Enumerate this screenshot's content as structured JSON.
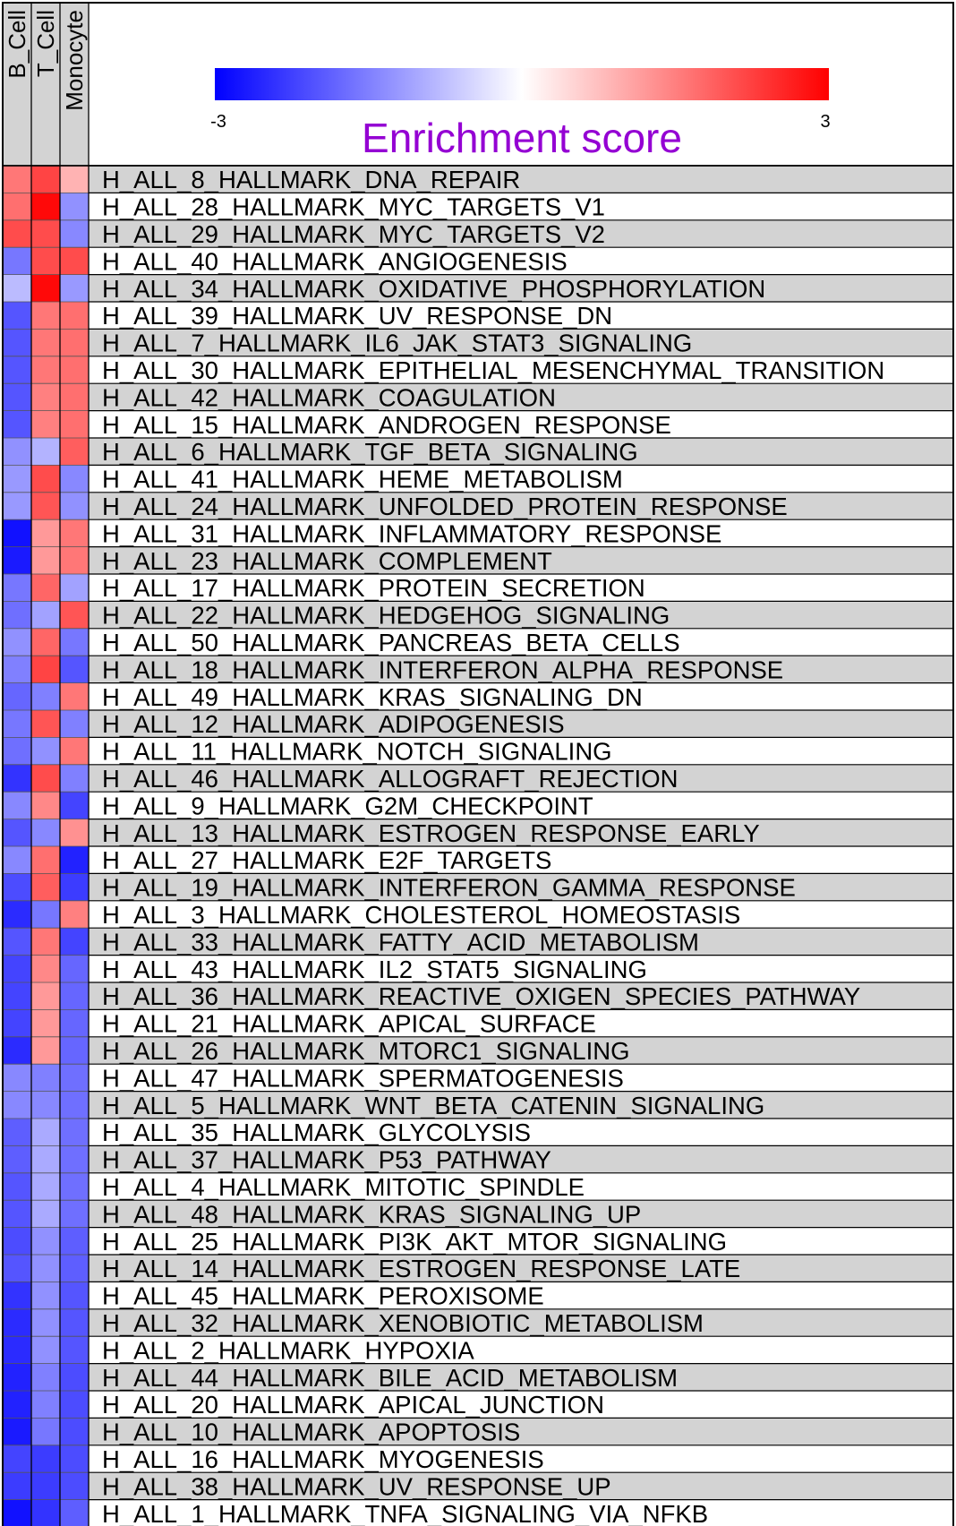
{
  "chart_data": {
    "type": "heatmap",
    "columns": [
      "B_Cell",
      "T_Cell",
      "Monocyte"
    ],
    "rows": [
      "H_ALL_8_HALLMARK_DNA_REPAIR",
      "H_ALL_28_HALLMARK_MYC_TARGETS_V1",
      "H_ALL_29_HALLMARK_MYC_TARGETS_V2",
      "H_ALL_40_HALLMARK_ANGIOGENESIS",
      "H_ALL_34_HALLMARK_OXIDATIVE_PHOSPHORYLATION",
      "H_ALL_39_HALLMARK_UV_RESPONSE_DN",
      "H_ALL_7_HALLMARK_IL6_JAK_STAT3_SIGNALING",
      "H_ALL_30_HALLMARK_EPITHELIAL_MESENCHYMAL_TRANSITION",
      "H_ALL_42_HALLMARK_COAGULATION",
      "H_ALL_15_HALLMARK_ANDROGEN_RESPONSE",
      "H_ALL_6_HALLMARK_TGF_BETA_SIGNALING",
      "H_ALL_41_HALLMARK_HEME_METABOLISM",
      "H_ALL_24_HALLMARK_UNFOLDED_PROTEIN_RESPONSE",
      "H_ALL_31_HALLMARK_INFLAMMATORY_RESPONSE",
      "H_ALL_23_HALLMARK_COMPLEMENT",
      "H_ALL_17_HALLMARK_PROTEIN_SECRETION",
      "H_ALL_22_HALLMARK_HEDGEHOG_SIGNALING",
      "H_ALL_50_HALLMARK_PANCREAS_BETA_CELLS",
      "H_ALL_18_HALLMARK_INTERFERON_ALPHA_RESPONSE",
      "H_ALL_49_HALLMARK_KRAS_SIGNALING_DN",
      "H_ALL_12_HALLMARK_ADIPOGENESIS",
      "H_ALL_11_HALLMARK_NOTCH_SIGNALING",
      "H_ALL_46_HALLMARK_ALLOGRAFT_REJECTION",
      "H_ALL_9_HALLMARK_G2M_CHECKPOINT",
      "H_ALL_13_HALLMARK_ESTROGEN_RESPONSE_EARLY",
      "H_ALL_27_HALLMARK_E2F_TARGETS",
      "H_ALL_19_HALLMARK_INTERFERON_GAMMA_RESPONSE",
      "H_ALL_3_HALLMARK_CHOLESTEROL_HOMEOSTASIS",
      "H_ALL_33_HALLMARK_FATTY_ACID_METABOLISM",
      "H_ALL_43_HALLMARK_IL2_STAT5_SIGNALING",
      "H_ALL_36_HALLMARK_REACTIVE_OXIGEN_SPECIES_PATHWAY",
      "H_ALL_21_HALLMARK_APICAL_SURFACE",
      "H_ALL_26_HALLMARK_MTORC1_SIGNALING",
      "H_ALL_47_HALLMARK_SPERMATOGENESIS",
      "H_ALL_5_HALLMARK_WNT_BETA_CATENIN_SIGNALING",
      "H_ALL_35_HALLMARK_GLYCOLYSIS",
      "H_ALL_37_HALLMARK_P53_PATHWAY",
      "H_ALL_4_HALLMARK_MITOTIC_SPINDLE",
      "H_ALL_48_HALLMARK_KRAS_SIGNALING_UP",
      "H_ALL_25_HALLMARK_PI3K_AKT_MTOR_SIGNALING",
      "H_ALL_14_HALLMARK_ESTROGEN_RESPONSE_LATE",
      "H_ALL_45_HALLMARK_PEROXISOME",
      "H_ALL_32_HALLMARK_XENOBIOTIC_METABOLISM",
      "H_ALL_2_HALLMARK_HYPOXIA",
      "H_ALL_44_HALLMARK_BILE_ACID_METABOLISM",
      "H_ALL_20_HALLMARK_APICAL_JUNCTION",
      "H_ALL_10_HALLMARK_APOPTOSIS",
      "H_ALL_16_HALLMARK_MYOGENESIS",
      "H_ALL_38_HALLMARK_UV_RESPONSE_UP",
      "H_ALL_1_HALLMARK_TNFA_SIGNALING_VIA_NFKB"
    ],
    "values": [
      [
        1.6,
        2.2,
        0.9
      ],
      [
        1.7,
        2.9,
        -1.3
      ],
      [
        2.1,
        2.1,
        -1.4
      ],
      [
        -1.6,
        2.1,
        2.1
      ],
      [
        -0.8,
        2.9,
        -1.2
      ],
      [
        -2.0,
        1.6,
        1.7
      ],
      [
        -2.0,
        1.6,
        1.7
      ],
      [
        -2.0,
        1.6,
        1.7
      ],
      [
        -2.0,
        1.5,
        1.7
      ],
      [
        -2.0,
        1.5,
        1.7
      ],
      [
        -1.3,
        -0.9,
        1.9
      ],
      [
        -1.2,
        2.1,
        -1.4
      ],
      [
        -1.2,
        2.0,
        -1.3
      ],
      [
        -2.8,
        1.2,
        1.6
      ],
      [
        -2.7,
        1.2,
        1.6
      ],
      [
        -1.6,
        1.8,
        -1.1
      ],
      [
        -1.7,
        -1.1,
        2.0
      ],
      [
        -1.3,
        1.8,
        -1.6
      ],
      [
        -1.5,
        2.2,
        -2.0
      ],
      [
        -1.8,
        -1.5,
        1.6
      ],
      [
        -1.6,
        2.0,
        -1.5
      ],
      [
        -1.7,
        -1.3,
        1.6
      ],
      [
        -2.4,
        2.1,
        -1.5
      ],
      [
        -1.4,
        1.4,
        -2.2
      ],
      [
        -2.0,
        -1.4,
        1.3
      ],
      [
        -1.4,
        1.7,
        -2.6
      ],
      [
        -2.1,
        1.9,
        -2.3
      ],
      [
        -2.5,
        -1.6,
        1.5
      ],
      [
        -2.0,
        1.6,
        -2.2
      ],
      [
        -2.2,
        1.4,
        -1.8
      ],
      [
        -2.2,
        1.2,
        -1.8
      ],
      [
        -2.2,
        1.2,
        -1.8
      ],
      [
        -2.5,
        1.2,
        -1.8
      ],
      [
        -1.4,
        -1.5,
        -1.7
      ],
      [
        -1.4,
        -1.4,
        -1.7
      ],
      [
        -1.9,
        -1.0,
        -1.7
      ],
      [
        -1.9,
        -1.0,
        -1.7
      ],
      [
        -2.0,
        -1.0,
        -1.7
      ],
      [
        -2.0,
        -1.0,
        -1.7
      ],
      [
        -2.1,
        -1.3,
        -1.9
      ],
      [
        -2.0,
        -1.3,
        -1.9
      ],
      [
        -2.4,
        -1.3,
        -2.0
      ],
      [
        -2.5,
        -1.3,
        -2.0
      ],
      [
        -2.5,
        -1.3,
        -2.0
      ],
      [
        -2.6,
        -1.5,
        -2.1
      ],
      [
        -2.6,
        -1.5,
        -2.1
      ],
      [
        -2.7,
        -1.6,
        -2.1
      ],
      [
        -2.2,
        -2.3,
        -2.1
      ],
      [
        -2.3,
        -2.3,
        -2.1
      ],
      [
        -2.8,
        -2.4,
        -1.9
      ]
    ],
    "colorscale": {
      "min": -3,
      "max": 3,
      "low_color": "#0000ff",
      "mid_color": "#ffffff",
      "high_color": "#ff0000"
    },
    "legend": {
      "title": "Enrichment score",
      "title_color": "#9400d3",
      "tick_labels": [
        "-3",
        "3"
      ],
      "placement": "top"
    },
    "row_band_colors": [
      "#d3d3d3",
      "#ffffff"
    ]
  }
}
